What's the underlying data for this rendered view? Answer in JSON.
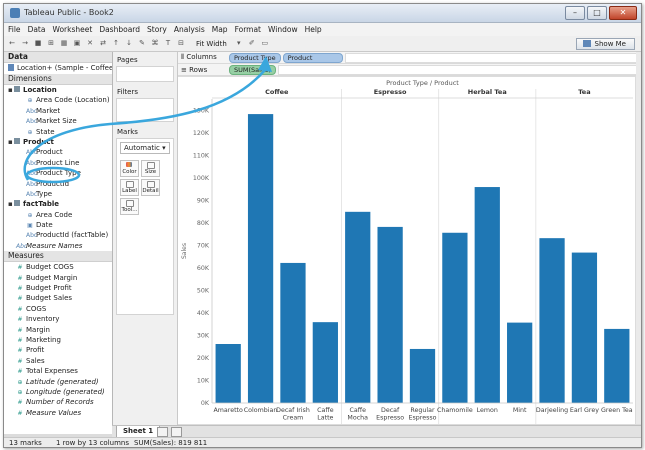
{
  "window": {
    "title": "Tableau Public - Book2"
  },
  "menu": [
    "File",
    "Data",
    "Worksheet",
    "Dashboard",
    "Story",
    "Analysis",
    "Map",
    "Format",
    "Window",
    "Help"
  ],
  "toolbar": {
    "fit": "Fit Width",
    "show_me": "Show Me"
  },
  "data_pane": {
    "header": "Data",
    "source": "Location+ (Sample - Coffee...",
    "dimensions_header": "Dimensions",
    "dimensions": [
      {
        "group": "Location",
        "fields": [
          "Area Code (Location)",
          "Market",
          "Market Size",
          "State"
        ]
      },
      {
        "group": "Product",
        "fields": [
          "Product",
          "Product Line",
          "Product Type",
          "ProductId",
          "Type"
        ]
      },
      {
        "group": "factTable",
        "fields": [
          "Area Code",
          "Date",
          "ProductId (factTable)"
        ]
      }
    ],
    "measure_names": "Measure Names",
    "measures_header": "Measures",
    "measures": [
      "Budget COGS",
      "Budget Margin",
      "Budget Profit",
      "Budget Sales",
      "COGS",
      "Inventory",
      "Margin",
      "Marketing",
      "Profit",
      "Sales",
      "Total Expenses"
    ],
    "measures_italic": [
      "Latitude (generated)",
      "Longitude (generated)",
      "Number of Records",
      "Measure Values"
    ]
  },
  "cards": {
    "pages": "Pages",
    "filters": "Filters",
    "marks": "Marks",
    "mark_type": "Automatic",
    "mark_buttons": [
      "Color",
      "Size",
      "Label",
      "Detail",
      "Tool..."
    ]
  },
  "shelves": {
    "columns_label": "Columns",
    "rows_label": "Rows",
    "columns_pills": [
      "Product Type",
      "Product"
    ],
    "rows_pill": "SUM(Sales)"
  },
  "chart_data": {
    "type": "bar",
    "title": "Product Type  /  Product",
    "ylabel": "Sales",
    "ylim": [
      0,
      135000
    ],
    "yticks": [
      "0K",
      "10K",
      "20K",
      "30K",
      "40K",
      "50K",
      "60K",
      "70K",
      "80K",
      "90K",
      "100K",
      "110K",
      "120K",
      "130K"
    ],
    "groups": [
      {
        "name": "Coffee",
        "categories": [
          "Amaretto",
          "Colombian",
          "Decaf Irish Cream",
          "Caffe Latte"
        ],
        "values": [
          26200,
          128300,
          62200,
          35900
        ]
      },
      {
        "name": "Espresso",
        "categories": [
          "Caffe Mocha",
          "Decaf Espresso",
          "Regular Espresso"
        ],
        "values": [
          84900,
          78200,
          24000
        ]
      },
      {
        "name": "Herbal Tea",
        "categories": [
          "Chamomile",
          "Lemon",
          "Mint"
        ],
        "values": [
          75600,
          95900,
          35700
        ]
      },
      {
        "name": "Tea",
        "categories": [
          "Darjeeling",
          "Earl Grey",
          "Green Tea"
        ],
        "values": [
          73200,
          66800,
          32900
        ]
      }
    ],
    "bar_color": "#1f77b4",
    "grid": false
  },
  "sheet": {
    "tab": "Sheet 1"
  },
  "status": {
    "marks": "13 marks",
    "dims": "1 row by 13 columns",
    "sum": "SUM(Sales): 819 811"
  },
  "annotation": {
    "color": "#3aa7dd"
  }
}
